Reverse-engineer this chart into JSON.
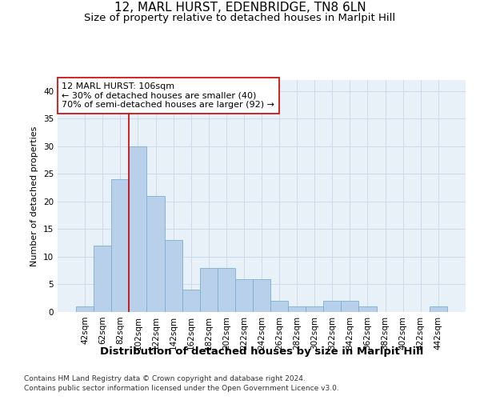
{
  "title": "12, MARL HURST, EDENBRIDGE, TN8 6LN",
  "subtitle": "Size of property relative to detached houses in Marlpit Hill",
  "xlabel": "Distribution of detached houses by size in Marlpit Hill",
  "ylabel": "Number of detached properties",
  "bar_values": [
    1,
    12,
    24,
    30,
    21,
    13,
    4,
    8,
    8,
    6,
    6,
    2,
    1,
    1,
    2,
    2,
    1,
    0,
    0,
    0,
    1
  ],
  "bar_labels": [
    "42sqm",
    "62sqm",
    "82sqm",
    "102sqm",
    "122sqm",
    "142sqm",
    "162sqm",
    "182sqm",
    "202sqm",
    "222sqm",
    "242sqm",
    "262sqm",
    "282sqm",
    "302sqm",
    "322sqm",
    "342sqm",
    "362sqm",
    "382sqm",
    "402sqm",
    "422sqm",
    "442sqm"
  ],
  "bar_color": "#b8d0ea",
  "bar_edge_color": "#7aafd4",
  "grid_color": "#ccdaea",
  "background_color": "#e8f0f8",
  "vline_color": "#cc0000",
  "vline_x_index": 3,
  "annotation_box_text": "12 MARL HURST: 106sqm\n← 30% of detached houses are smaller (40)\n70% of semi-detached houses are larger (92) →",
  "annotation_box_edgecolor": "#cc0000",
  "annotation_box_facecolor": "#ffffff",
  "footer_line1": "Contains HM Land Registry data © Crown copyright and database right 2024.",
  "footer_line2": "Contains public sector information licensed under the Open Government Licence v3.0.",
  "ylim_max": 42,
  "yticks": [
    0,
    5,
    10,
    15,
    20,
    25,
    30,
    35,
    40
  ],
  "title_fontsize": 11,
  "subtitle_fontsize": 9.5,
  "xlabel_fontsize": 9.5,
  "ylabel_fontsize": 8,
  "tick_fontsize": 7.5,
  "footer_fontsize": 6.5,
  "annotation_fontsize": 8
}
